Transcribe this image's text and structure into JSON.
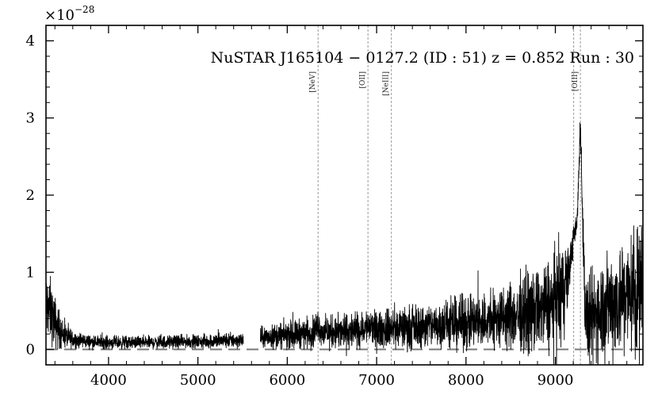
{
  "chart_data": {
    "type": "line",
    "title": "NuSTAR J165104 − 0127.2 (ID : 51)   z = 0.852   Run : 30",
    "xlabel": "",
    "ylabel": "",
    "y_multiplier_base": "×10",
    "y_multiplier_exponent": "−28",
    "xlim": [
      3300,
      9980
    ],
    "ylim": [
      -0.2,
      4.2
    ],
    "x_ticks": [
      4000,
      5000,
      6000,
      7000,
      8000,
      9000
    ],
    "y_ticks": [
      0,
      1,
      2,
      3,
      4
    ],
    "zero_line": 0,
    "emission_lines": [
      {
        "label": "[NeV]",
        "x": 6345
      },
      {
        "label": "[OII]",
        "x": 6903
      },
      {
        "label": "[NeIII]",
        "x": 7165
      },
      {
        "label": "",
        "x": 9205
      },
      {
        "label": "[OIII]",
        "x": 9280
      }
    ],
    "gap": [
      5510,
      5700
    ],
    "series": [
      {
        "x": [
          3300,
          3350,
          3400,
          3450,
          3500,
          3600,
          3800,
          4000,
          4200,
          4500,
          4800,
          5000,
          5200,
          5400,
          5510,
          5700,
          5900,
          6100,
          6300,
          6345,
          6400,
          6600,
          6800,
          6903,
          7000,
          7165,
          7300,
          7500,
          7700,
          7900,
          8100,
          8300,
          8500,
          8700,
          8900,
          9000,
          9100,
          9150,
          9205,
          9240,
          9260,
          9280,
          9300,
          9330,
          9360,
          9400,
          9500,
          9600,
          9700,
          9800,
          9900,
          9980
        ],
        "y": [
          0.55,
          0.5,
          0.35,
          0.25,
          0.18,
          0.13,
          0.1,
          0.09,
          0.09,
          0.09,
          0.1,
          0.1,
          0.11,
          0.12,
          0.12,
          0.15,
          0.18,
          0.2,
          0.23,
          0.32,
          0.22,
          0.22,
          0.24,
          0.3,
          0.25,
          0.28,
          0.28,
          0.3,
          0.32,
          0.33,
          0.35,
          0.38,
          0.42,
          0.47,
          0.55,
          0.6,
          0.8,
          1.0,
          1.45,
          1.6,
          2.2,
          3.0,
          2.0,
          0.6,
          0.3,
          0.35,
          0.55,
          0.6,
          0.65,
          0.7,
          0.75,
          0.8
        ],
        "noise": [
          0.25,
          0.25,
          0.2,
          0.15,
          0.1,
          0.07,
          0.05,
          0.05,
          0.05,
          0.05,
          0.05,
          0.05,
          0.06,
          0.06,
          0.06,
          0.08,
          0.1,
          0.11,
          0.12,
          0.12,
          0.12,
          0.14,
          0.14,
          0.14,
          0.14,
          0.15,
          0.16,
          0.17,
          0.18,
          0.2,
          0.22,
          0.24,
          0.27,
          0.3,
          0.35,
          0.4,
          0.4,
          0.2,
          0.1,
          0.1,
          0.12,
          0.12,
          0.2,
          0.3,
          0.35,
          0.4,
          0.4,
          0.4,
          0.45,
          0.45,
          0.5,
          0.55
        ]
      }
    ]
  }
}
